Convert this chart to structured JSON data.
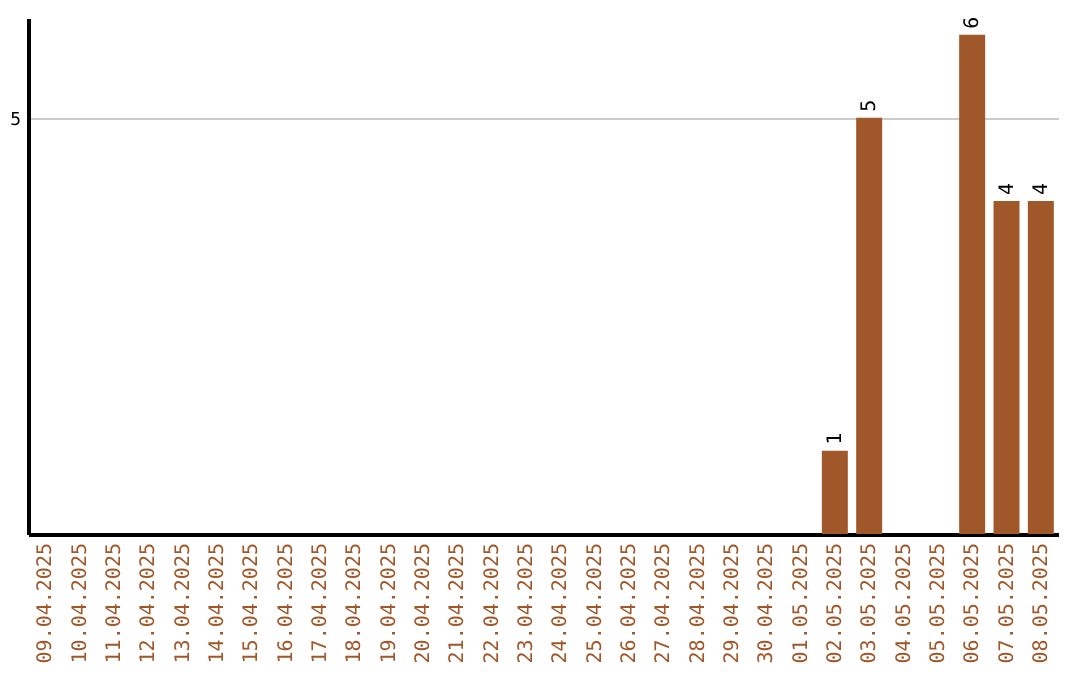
{
  "chart_data": {
    "type": "bar",
    "categories": [
      "09.04.2025",
      "10.04.2025",
      "11.04.2025",
      "12.04.2025",
      "13.04.2025",
      "14.04.2025",
      "15.04.2025",
      "16.04.2025",
      "17.04.2025",
      "18.04.2025",
      "19.04.2025",
      "20.04.2025",
      "21.04.2025",
      "22.04.2025",
      "23.04.2025",
      "24.04.2025",
      "25.04.2025",
      "26.04.2025",
      "27.04.2025",
      "28.04.2025",
      "29.04.2025",
      "30.04.2025",
      "01.05.2025",
      "02.05.2025",
      "03.05.2025",
      "04.05.2025",
      "05.05.2025",
      "06.05.2025",
      "07.05.2025",
      "08.05.2025"
    ],
    "values": [
      null,
      null,
      null,
      null,
      null,
      null,
      null,
      null,
      null,
      null,
      null,
      null,
      null,
      null,
      null,
      null,
      null,
      null,
      null,
      null,
      null,
      null,
      null,
      1,
      5,
      null,
      null,
      6,
      4,
      4
    ],
    "data_labels": true,
    "color": "#a0582a",
    "ylim": [
      0,
      6.2
    ],
    "yticks": [
      5
    ],
    "grid": "y"
  }
}
